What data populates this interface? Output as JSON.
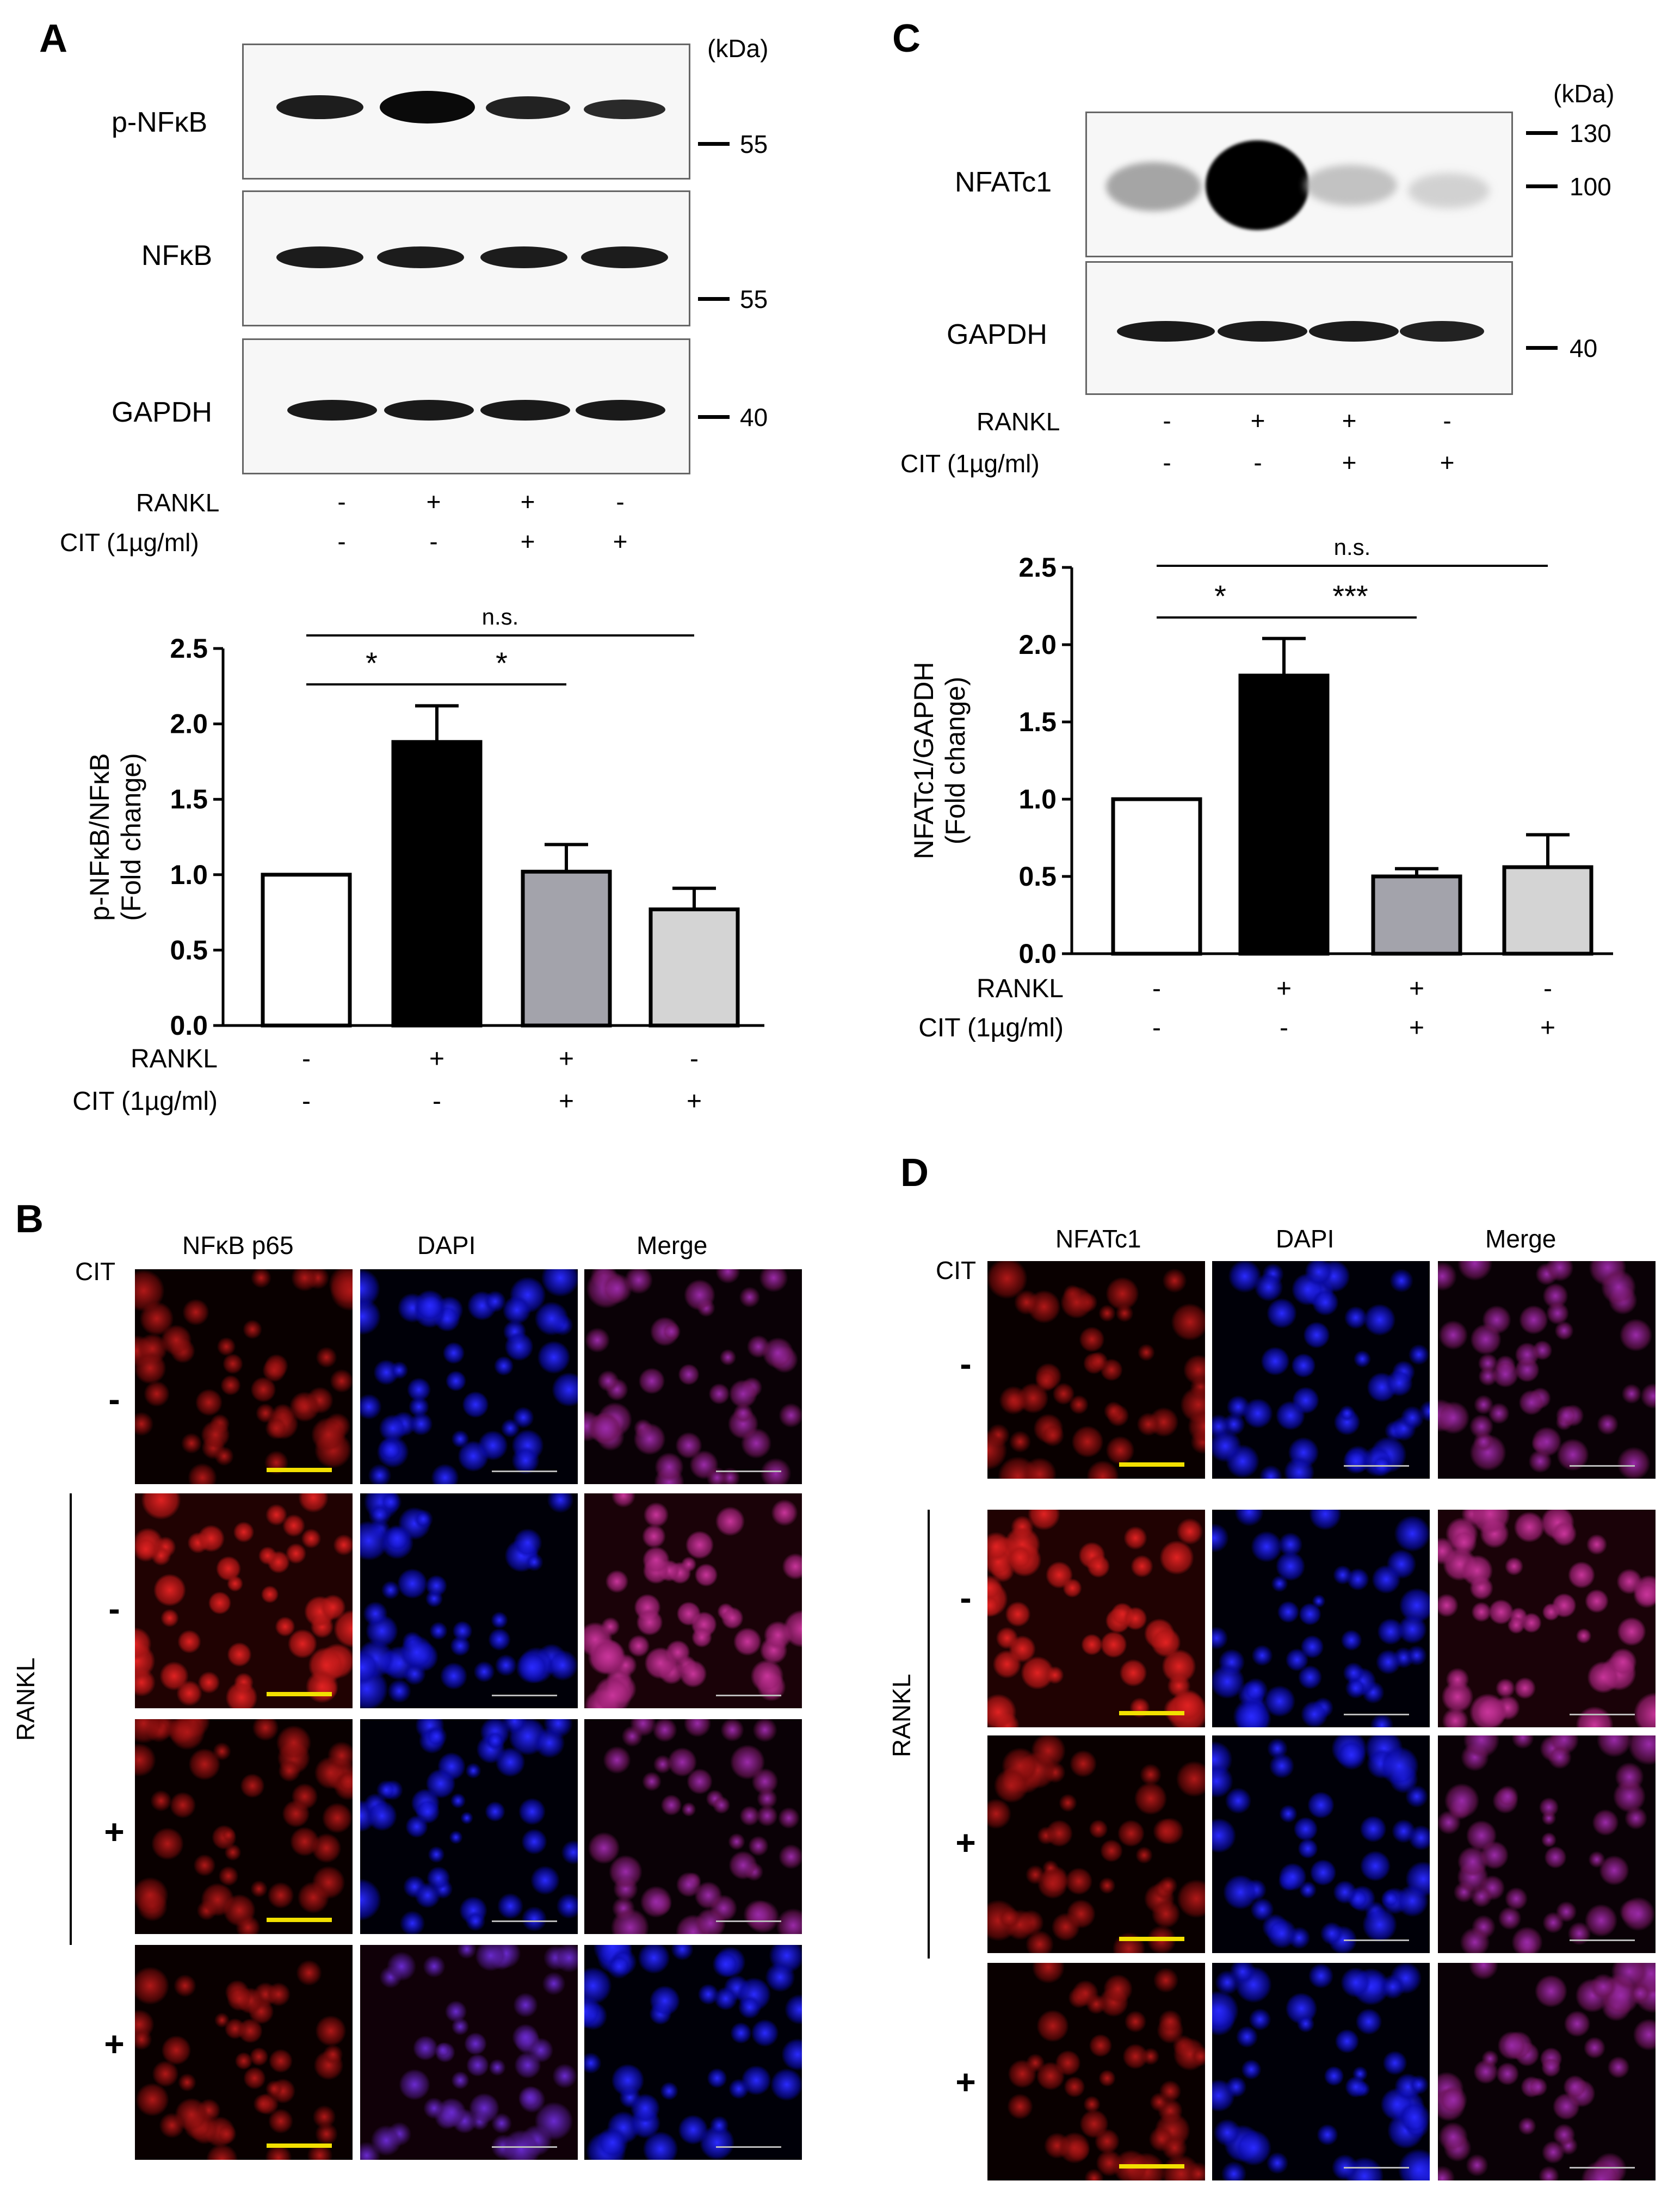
{
  "panelA": {
    "letter": "A",
    "kda": "(kDa)",
    "blots": [
      {
        "label": "p-NFκB",
        "marker": "55"
      },
      {
        "label": "NFκB",
        "marker": "55"
      },
      {
        "label": "GAPDH",
        "marker": "40"
      }
    ],
    "rankl_label": "RANKL",
    "cit_label": "CIT (1µg/ml)",
    "rankl_signs": [
      "-",
      "+",
      "+",
      "-"
    ],
    "cit_signs": [
      "-",
      "-",
      "+",
      "+"
    ]
  },
  "panelC": {
    "letter": "C",
    "kda": "(kDa)",
    "blots": [
      {
        "label": "NFATc1",
        "markers": [
          "130",
          "100"
        ]
      },
      {
        "label": "GAPDH",
        "markers": [
          "40"
        ]
      }
    ],
    "rankl_label": "RANKL",
    "cit_label": "CIT (1µg/ml)",
    "rankl_signs": [
      "-",
      "+",
      "+",
      "-"
    ],
    "cit_signs": [
      "-",
      "-",
      "+",
      "+"
    ]
  },
  "chart_data": [
    {
      "type": "bar",
      "ylabel": "p-NFκB/NFκB\n(Fold change)",
      "ylim": [
        0,
        2.5
      ],
      "yticks": [
        "0.0",
        "0.5",
        "1.0",
        "1.5",
        "2.0",
        "2.5"
      ],
      "values": [
        1.0,
        1.88,
        1.02,
        0.77
      ],
      "errors": [
        0,
        0.24,
        0.18,
        0.14
      ],
      "colors": [
        "#ffffff",
        "#000000",
        "#a3a3ab",
        "#d4d4d4"
      ],
      "row_labels": [
        "RANKL",
        "CIT (1µg/ml)"
      ],
      "rankl_signs": [
        "-",
        "+",
        "+",
        "-"
      ],
      "cit_signs": [
        "-",
        "-",
        "+",
        "+"
      ],
      "significance": [
        {
          "from": 0,
          "to": 1,
          "label": "*"
        },
        {
          "from": 1,
          "to": 2,
          "label": "*"
        },
        {
          "from": 0,
          "to": 3,
          "label": "n.s."
        }
      ]
    },
    {
      "type": "bar",
      "ylabel": "NFATc1/GAPDH\n(Fold change)",
      "ylim": [
        0,
        2.5
      ],
      "yticks": [
        "0.0",
        "0.5",
        "1.0",
        "1.5",
        "2.0",
        "2.5"
      ],
      "values": [
        1.0,
        1.8,
        0.5,
        0.56
      ],
      "errors": [
        0,
        0.24,
        0.05,
        0.21
      ],
      "colors": [
        "#ffffff",
        "#000000",
        "#a3a3ab",
        "#d4d4d4"
      ],
      "row_labels": [
        "RANKL",
        "CIT (1µg/ml)"
      ],
      "rankl_signs": [
        "-",
        "+",
        "+",
        "-"
      ],
      "cit_signs": [
        "-",
        "-",
        "+",
        "+"
      ],
      "significance": [
        {
          "from": 0,
          "to": 1,
          "label": "*"
        },
        {
          "from": 1,
          "to": 2,
          "label": "***"
        },
        {
          "from": 0,
          "to": 3,
          "label": "n.s."
        }
      ]
    }
  ],
  "panelB": {
    "letter": "B",
    "cit_label": "CIT",
    "columns": [
      "NFκB p65",
      "DAPI",
      "Merge"
    ],
    "row_signs": [
      "-",
      "-",
      "+",
      "+"
    ],
    "rankl_label": "RANKL"
  },
  "panelD": {
    "letter": "D",
    "cit_label": "CIT",
    "columns": [
      "NFATc1",
      "DAPI",
      "Merge"
    ],
    "row_signs": [
      "-",
      "-",
      "+",
      "+"
    ],
    "rankl_label": "RANKL"
  }
}
